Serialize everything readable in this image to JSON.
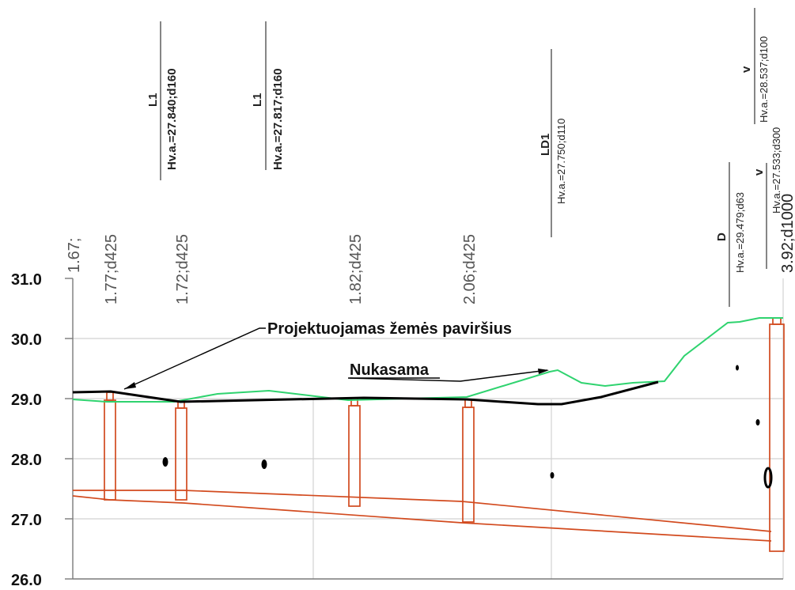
{
  "y_axis": {
    "labels": [
      "31.0",
      "30.0",
      "29.0",
      "28.0",
      "27.0",
      "26.0"
    ]
  },
  "depth_labels": {
    "d0": "1.67;",
    "d1": "1.77;d425",
    "d2": "1.72;d425",
    "d3": "1.82;d425",
    "d4": "2.06;d425",
    "d5": "3.92;d1000"
  },
  "pipe_labels": {
    "p1_code": "L1",
    "p1_text": "Hv.a.=27.840;d160",
    "p2_code": "L1",
    "p2_text": "Hv.a.=27.817;d160",
    "p3_code": "LD1",
    "p3_text": "Hv.a.=27.750;d110",
    "p4_code": "D",
    "p4_text": "Hv.a.=29.479;d63",
    "p5_code": "v",
    "p5_text": "Hv.a.=27.533;d300",
    "p6_code": "v",
    "p6_text": "Hv.a.=28.537;d100"
  },
  "annotations": {
    "surface": "Projektuojamas žemės paviršius",
    "cut": "Nukasama"
  },
  "colors": {
    "existing_ground": "#2fd36f",
    "design_surface": "#000000",
    "pipe_structure": "#d24a1e",
    "grid": "#d2d2d2"
  }
}
